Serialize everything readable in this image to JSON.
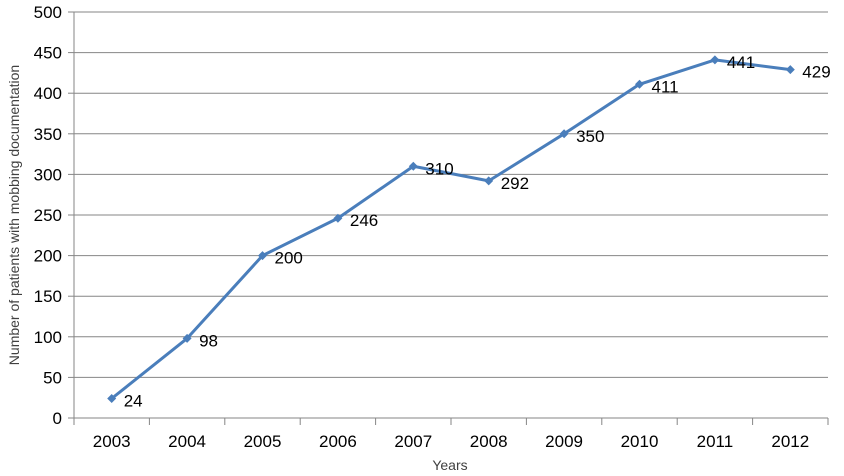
{
  "chart_data": {
    "type": "line",
    "title": "",
    "xlabel": "Years",
    "ylabel": "Number of patients with mobbing documentation",
    "categories": [
      "2003",
      "2004",
      "2005",
      "2006",
      "2007",
      "2008",
      "2009",
      "2010",
      "2011",
      "2012"
    ],
    "series": [
      {
        "values": [
          24,
          98,
          200,
          246,
          310,
          292,
          350,
          411,
          441,
          429
        ],
        "labels": [
          "24",
          "98",
          "200",
          "246",
          "310",
          "292",
          "350",
          "411",
          "441",
          "429"
        ]
      }
    ],
    "ylim": [
      0,
      500
    ],
    "yticks": [
      0,
      50,
      100,
      150,
      200,
      250,
      300,
      350,
      400,
      450,
      500
    ],
    "ytick_labels": [
      "0",
      "50",
      "100",
      "150",
      "200",
      "250",
      "300",
      "350",
      "400",
      "450",
      "500"
    ],
    "grid": "horizontal",
    "legend": "none",
    "colors": {
      "line": "#4a7ebb",
      "grid": "#868686",
      "axis": "#868686"
    }
  }
}
